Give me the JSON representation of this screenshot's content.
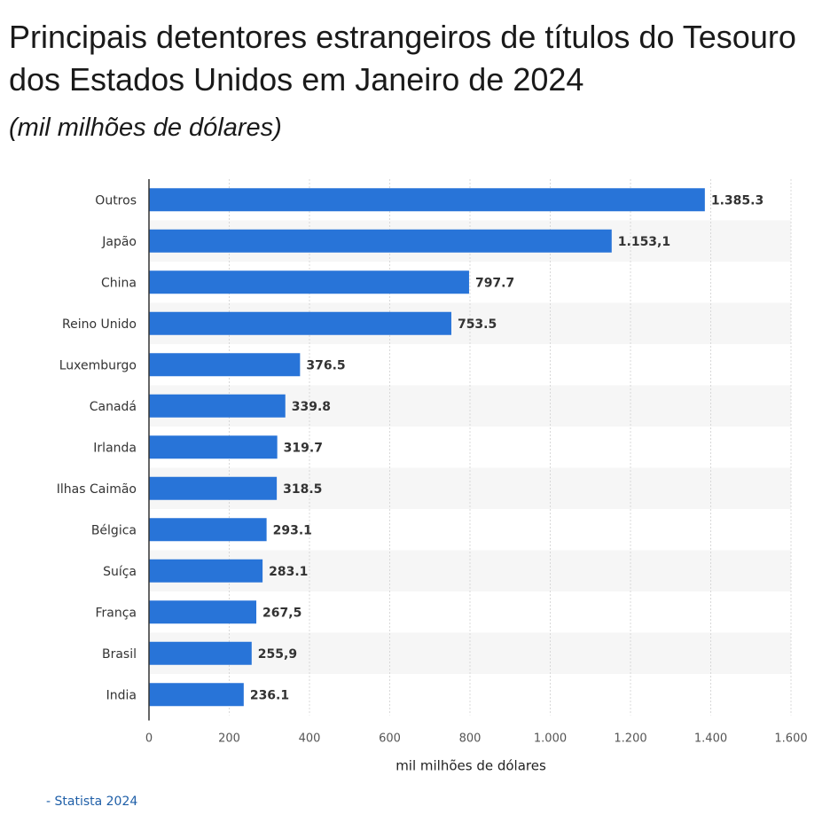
{
  "header": {
    "title": "Principais detentores estrangeiros de títulos do Tesouro dos Estados Unidos em Janeiro de 2024",
    "subtitle": "(mil milhões de dólares)"
  },
  "footer": {
    "source": "- Statista 2024"
  },
  "colors": {
    "bar": "#2874d8",
    "band": "#f6f6f6",
    "grid": "#d8d8d8",
    "axis": "#333333"
  },
  "chart_data": {
    "type": "bar",
    "orientation": "horizontal",
    "categories": [
      "Outros",
      "Japão",
      "China",
      "Reino Unido",
      "Luxemburgo",
      "Canadá",
      "Irlanda",
      "Ilhas Caimão",
      "Bélgica",
      "Suíça",
      "França",
      "Brasil",
      "India"
    ],
    "values": [
      1385.3,
      1153.1,
      797.7,
      753.5,
      376.5,
      339.8,
      319.7,
      318.5,
      293.1,
      283.1,
      267.5,
      255.9,
      236.1
    ],
    "value_labels": [
      "1.385.3",
      "1.153,1",
      "797.7",
      "753.5",
      "376.5",
      "339.8",
      "319.7",
      "318.5",
      "293.1",
      "283.1",
      "267,5",
      "255,9",
      "236.1"
    ],
    "xticks": [
      0,
      200,
      400,
      600,
      800,
      1000,
      1200,
      1400,
      1600
    ],
    "xtick_labels": [
      "0",
      "200",
      "400",
      "600",
      "800",
      "1.000",
      "1.200",
      "1.400",
      "1.600"
    ],
    "xlabel": "mil milhões de dólares",
    "ylabel": "",
    "xlim": [
      0,
      1600
    ],
    "grid": true
  }
}
